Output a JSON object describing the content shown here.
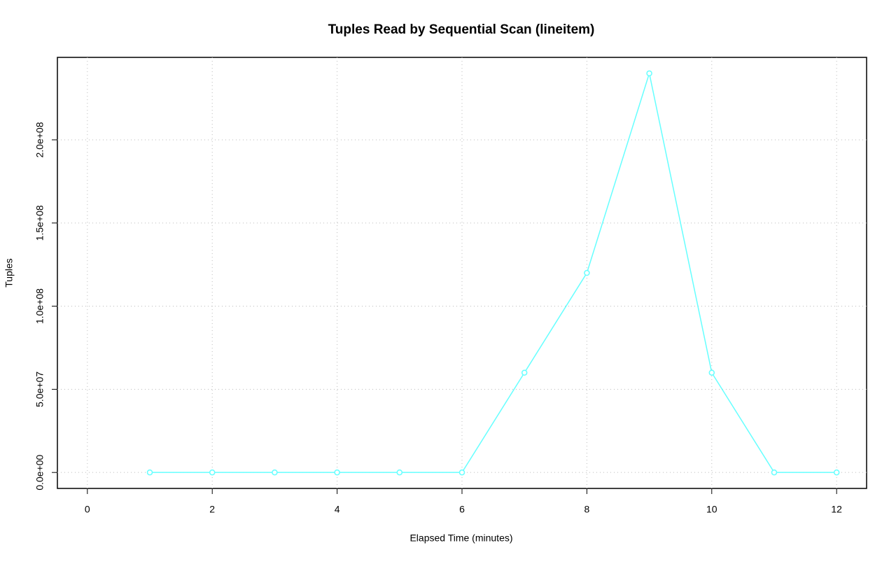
{
  "chart_data": {
    "type": "line",
    "title": "Tuples Read by Sequential Scan (lineitem)",
    "x_label": "Elapsed Time (minutes)",
    "y_label": "Tuples",
    "x": [
      1,
      2,
      3,
      4,
      5,
      6,
      7,
      8,
      9,
      10,
      11,
      12
    ],
    "series": [
      {
        "color": "#66ffff",
        "values": [
          0,
          0,
          0,
          0,
          0,
          0,
          60000000,
          120000000,
          240000000,
          60000000,
          0,
          0
        ]
      }
    ],
    "xlim": [
      -0.48,
      12.48
    ],
    "xticks": [
      0,
      2,
      4,
      6,
      8,
      10,
      12
    ],
    "ylim": [
      -9600000,
      249600000
    ],
    "yticks": [
      {
        "value": 0,
        "label": "0.0e+00"
      },
      {
        "value": 50000000,
        "label": "5.0e+07"
      },
      {
        "value": 100000000,
        "label": "1.0e+08"
      },
      {
        "value": 150000000,
        "label": "1.5e+08"
      },
      {
        "value": 200000000,
        "label": "2.0e+08"
      }
    ],
    "grid": true
  }
}
